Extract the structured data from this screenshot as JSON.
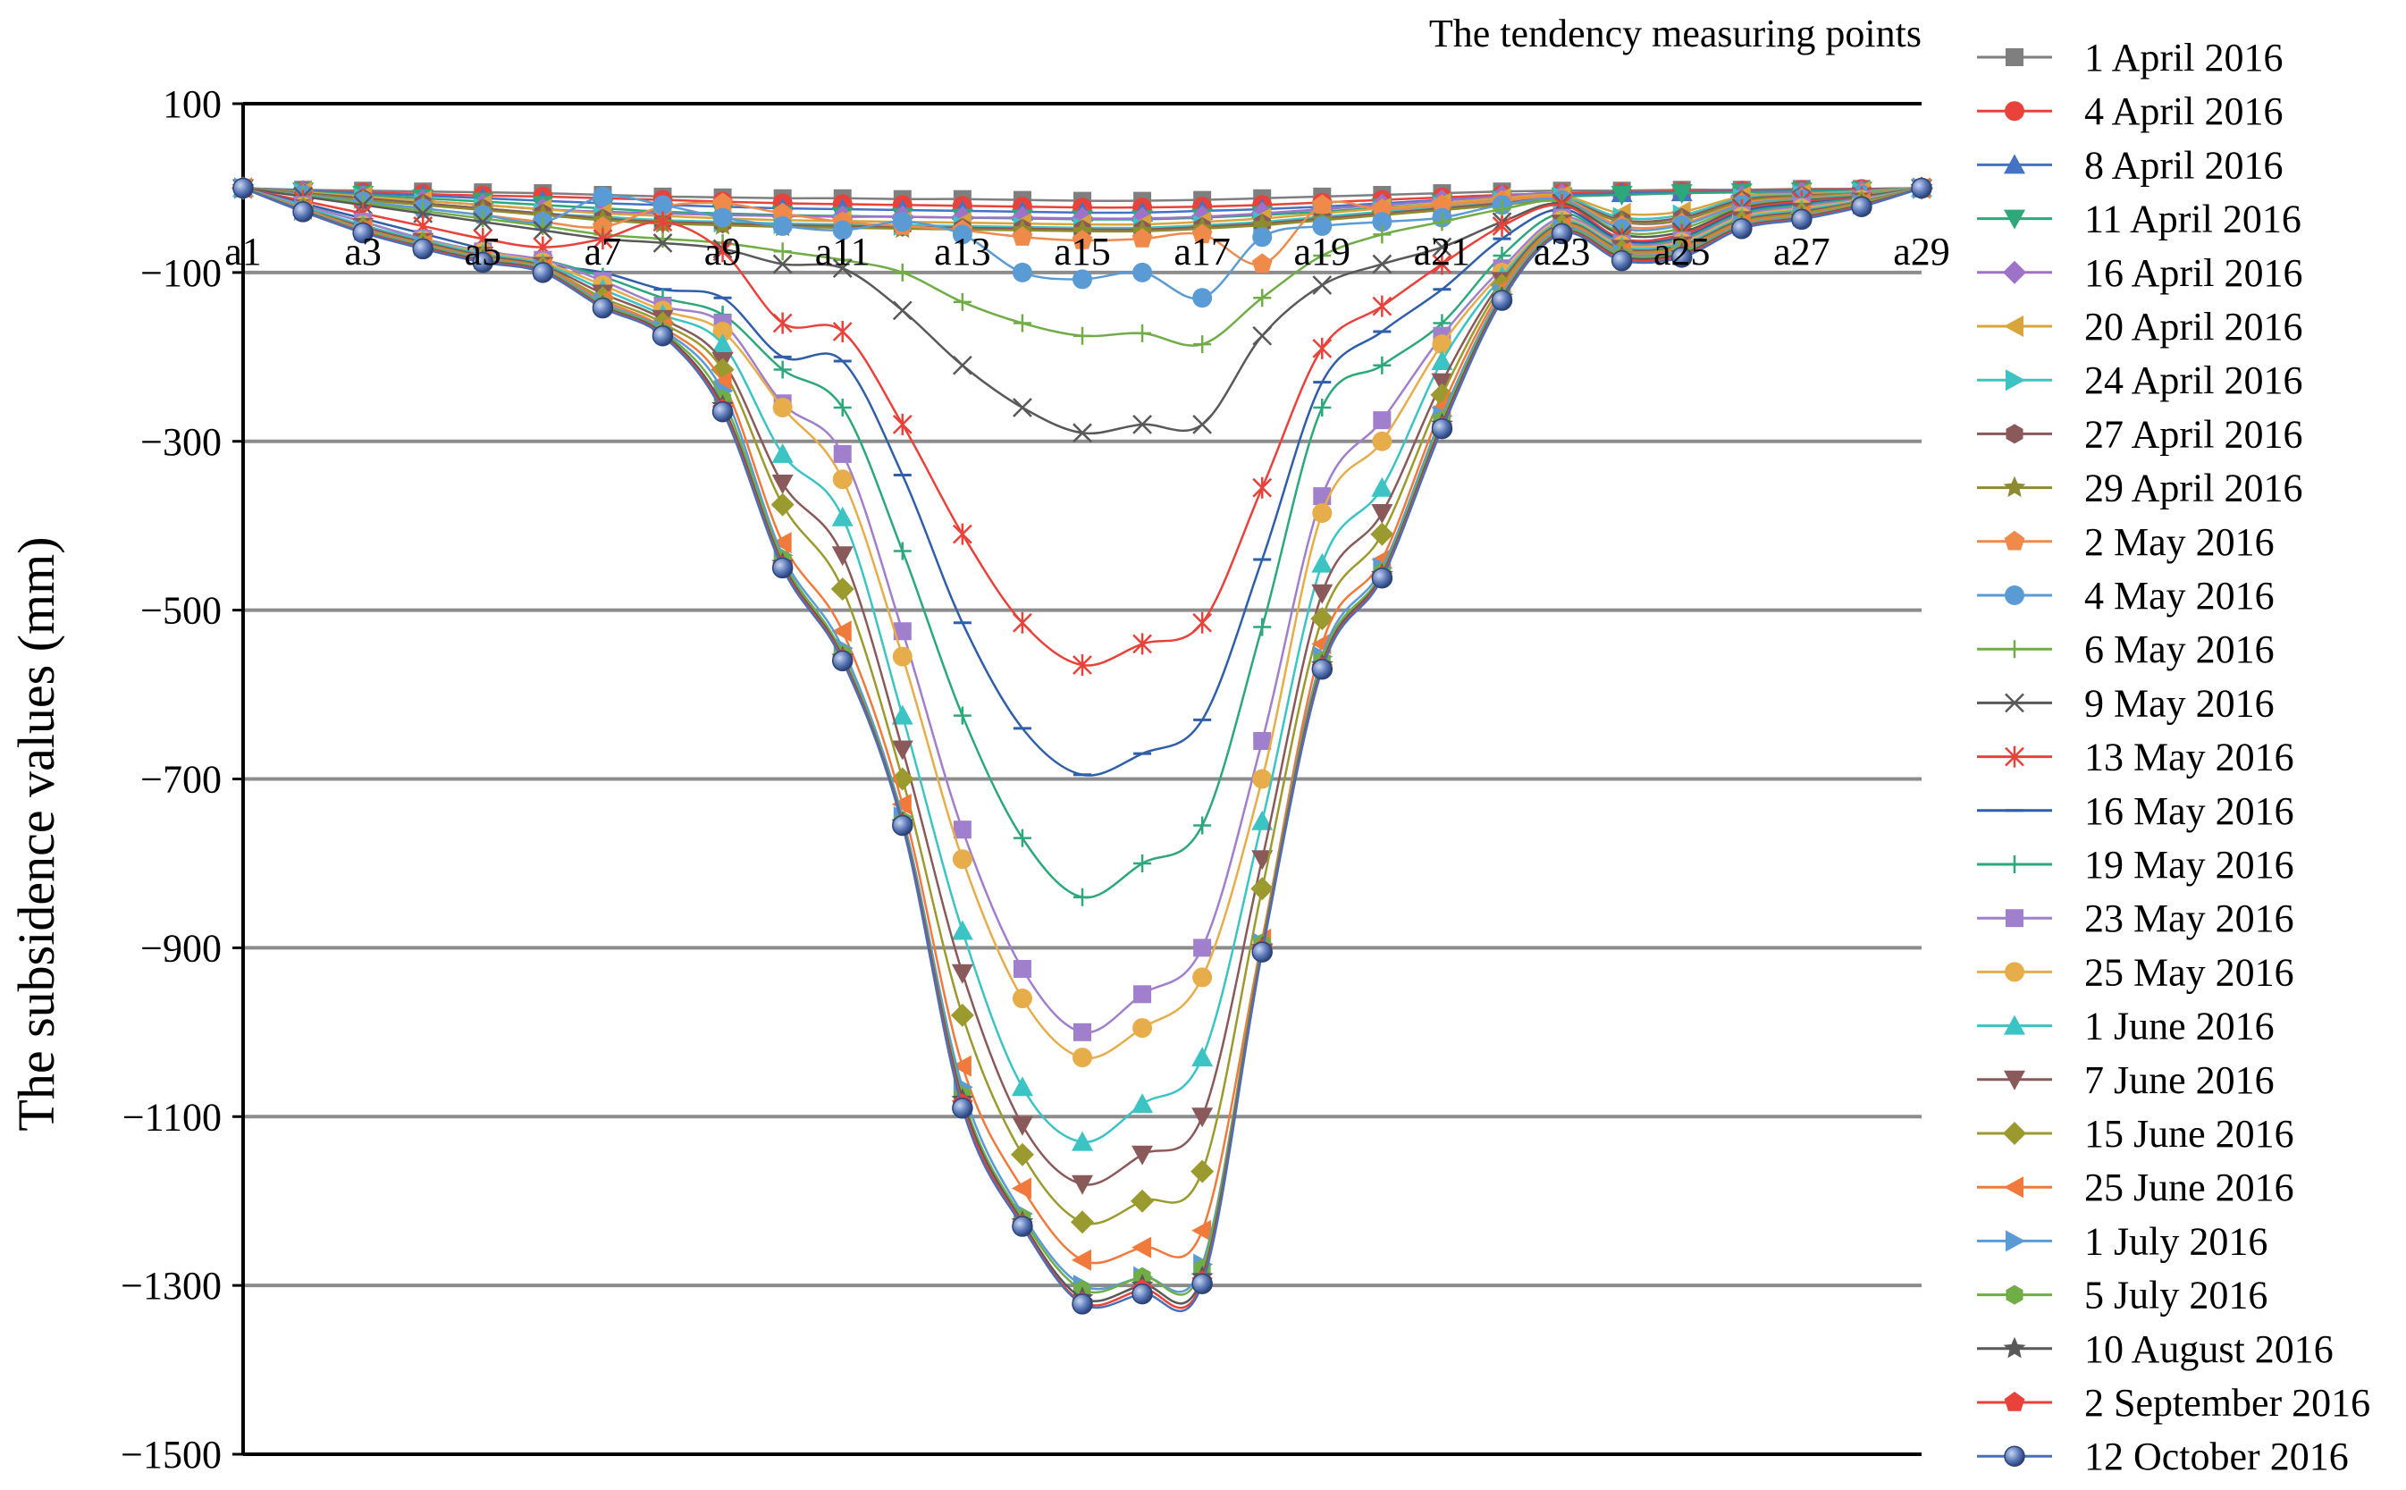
{
  "chart_data": {
    "type": "line",
    "title": "",
    "xlabel": "The tendency measuring points",
    "ylabel": "The subsidence values (mm)",
    "ylim": [
      -1500,
      100
    ],
    "yticks": [
      100,
      -100,
      -300,
      -500,
      -700,
      -900,
      -1100,
      -1300,
      -1500
    ],
    "ytick_labels": [
      "100",
      "−100",
      "−300",
      "−500",
      "−700",
      "−900",
      "−1100",
      "−1300",
      "−1500"
    ],
    "x": [
      "a1",
      "a2",
      "a3",
      "a4",
      "a5",
      "a6",
      "a7",
      "a8",
      "a9",
      "a10",
      "a11",
      "a12",
      "a13",
      "a14",
      "a15",
      "a16",
      "a17",
      "a18",
      "a19",
      "a20",
      "a21",
      "a22",
      "a23",
      "a24",
      "a25",
      "a26",
      "a27",
      "a28",
      "a29"
    ],
    "xtick_labels": [
      "a1",
      "a3",
      "a5",
      "a7",
      "a9",
      "a11",
      "a13",
      "a15",
      "a17",
      "a19",
      "a21",
      "a23",
      "a25",
      "a27",
      "a29"
    ],
    "grid": true,
    "legend_position": "right",
    "series": [
      {
        "name": "1 April 2016",
        "color": "#7f7f7f",
        "marker": "square",
        "values": [
          0,
          -2,
          -3,
          -4,
          -5,
          -6,
          -8,
          -10,
          -11,
          -12,
          -12,
          -13,
          -13,
          -14,
          -15,
          -15,
          -14,
          -12,
          -10,
          -8,
          -6,
          -4,
          -3,
          -3,
          -2,
          -2,
          -1,
          -1,
          0
        ]
      },
      {
        "name": "4 April 2016",
        "color": "#e8423b",
        "marker": "circle",
        "values": [
          0,
          -3,
          -5,
          -7,
          -9,
          -10,
          -12,
          -14,
          -16,
          -18,
          -19,
          -20,
          -21,
          -22,
          -23,
          -23,
          -22,
          -20,
          -17,
          -14,
          -11,
          -8,
          -6,
          -5,
          -4,
          -3,
          -2,
          -1,
          0
        ]
      },
      {
        "name": "8 April 2016",
        "color": "#4472c4",
        "marker": "triangle",
        "values": [
          0,
          -3,
          -6,
          -9,
          -12,
          -15,
          -18,
          -20,
          -22,
          -24,
          -25,
          -26,
          -27,
          -28,
          -29,
          -29,
          -27,
          -25,
          -22,
          -18,
          -14,
          -10,
          -8,
          -6,
          -5,
          -4,
          -3,
          -2,
          0
        ]
      },
      {
        "name": "11 April 2016",
        "color": "#2ca87a",
        "marker": "triangle-down",
        "values": [
          0,
          -4,
          -8,
          -12,
          -16,
          -20,
          -24,
          -28,
          -30,
          -32,
          -33,
          -34,
          -35,
          -36,
          -37,
          -37,
          -35,
          -32,
          -28,
          -23,
          -18,
          -13,
          -10,
          -8,
          -6,
          -5,
          -4,
          -3,
          0
        ]
      },
      {
        "name": "16 April 2016",
        "color": "#9e72c9",
        "marker": "diamond",
        "values": [
          0,
          -5,
          -10,
          -15,
          -20,
          -25,
          -28,
          -30,
          -32,
          -33,
          -34,
          -34,
          -35,
          -35,
          -36,
          -36,
          -34,
          -30,
          -25,
          -20,
          -15,
          -10,
          -8,
          -40,
          -38,
          -10,
          -6,
          -4,
          0
        ]
      },
      {
        "name": "20 April 2016",
        "color": "#d8a43b",
        "marker": "triangle-left",
        "values": [
          0,
          -5,
          -10,
          -15,
          -20,
          -25,
          -30,
          -33,
          -36,
          -38,
          -39,
          -40,
          -41,
          -42,
          -43,
          -43,
          -40,
          -36,
          -30,
          -24,
          -18,
          -12,
          -9,
          -30,
          -28,
          -10,
          -7,
          -4,
          0
        ]
      },
      {
        "name": "24 April 2016",
        "color": "#3cc3c3",
        "marker": "triangle-right",
        "values": [
          0,
          -6,
          -12,
          -18,
          -24,
          -30,
          -34,
          -38,
          -40,
          -42,
          -43,
          -44,
          -45,
          -46,
          -47,
          -47,
          -44,
          -40,
          -34,
          -28,
          -22,
          -16,
          -11,
          -35,
          -32,
          -12,
          -8,
          -5,
          0
        ]
      },
      {
        "name": "27 April 2016",
        "color": "#8a5a5a",
        "marker": "hexagon",
        "values": [
          0,
          -6,
          -12,
          -18,
          -24,
          -30,
          -36,
          -40,
          -42,
          -44,
          -45,
          -46,
          -47,
          -48,
          -49,
          -49,
          -46,
          -42,
          -36,
          -30,
          -24,
          -18,
          -13,
          -38,
          -35,
          -14,
          -9,
          -6,
          0
        ]
      },
      {
        "name": "29 April 2016",
        "color": "#8c8c2e",
        "marker": "star",
        "values": [
          0,
          -7,
          -14,
          -20,
          -26,
          -32,
          -38,
          -42,
          -44,
          -46,
          -47,
          -48,
          -49,
          -50,
          -51,
          -51,
          -48,
          -44,
          -38,
          -32,
          -26,
          -20,
          -15,
          -40,
          -38,
          -16,
          -10,
          -6,
          0
        ]
      },
      {
        "name": "2 May 2016",
        "color": "#f08a4b",
        "marker": "pentagon",
        "values": [
          0,
          -8,
          -16,
          -24,
          -32,
          -40,
          -46,
          -22,
          -18,
          -30,
          -40,
          -45,
          -50,
          -58,
          -62,
          -60,
          -55,
          -90,
          -20,
          -25,
          -20,
          -15,
          -12,
          -45,
          -42,
          -18,
          -12,
          -7,
          0
        ]
      },
      {
        "name": "4 May 2016",
        "color": "#5b9bd5",
        "marker": "circle",
        "values": [
          0,
          -8,
          -16,
          -24,
          -32,
          -40,
          -10,
          -20,
          -35,
          -45,
          -50,
          -40,
          -55,
          -100,
          -108,
          -100,
          -130,
          -58,
          -45,
          -40,
          -35,
          -20,
          -14,
          -48,
          -44,
          -20,
          -13,
          -8,
          0
        ]
      },
      {
        "name": "6 May 2016",
        "color": "#70ad47",
        "marker": "plus",
        "values": [
          0,
          -9,
          -18,
          -27,
          -36,
          -45,
          -55,
          -60,
          -65,
          -75,
          -85,
          -100,
          -135,
          -160,
          -175,
          -172,
          -185,
          -130,
          -80,
          -55,
          -40,
          -25,
          -16,
          -52,
          -48,
          -22,
          -14,
          -9,
          0
        ]
      },
      {
        "name": "9 May 2016",
        "color": "#595959",
        "marker": "x",
        "values": [
          0,
          -10,
          -20,
          -30,
          -40,
          -50,
          -60,
          -65,
          -72,
          -90,
          -95,
          -145,
          -210,
          -260,
          -290,
          -280,
          -280,
          -175,
          -115,
          -90,
          -70,
          -40,
          -18,
          -55,
          -52,
          -24,
          -15,
          -10,
          0
        ]
      },
      {
        "name": "13 May 2016",
        "color": "#e8423b",
        "marker": "asterisk",
        "values": [
          0,
          -15,
          -30,
          -45,
          -60,
          -70,
          -60,
          -40,
          -75,
          -160,
          -170,
          -280,
          -410,
          -515,
          -565,
          -540,
          -515,
          -355,
          -190,
          -140,
          -90,
          -45,
          -20,
          -60,
          -55,
          -26,
          -16,
          -11,
          0
        ]
      },
      {
        "name": "16 May 2016",
        "color": "#2e5fa8",
        "marker": "dash",
        "values": [
          0,
          -18,
          -36,
          -54,
          -72,
          -90,
          -100,
          -120,
          -130,
          -200,
          -205,
          -340,
          -515,
          -640,
          -695,
          -670,
          -630,
          -440,
          -230,
          -170,
          -120,
          -60,
          -25,
          -62,
          -58,
          -28,
          -18,
          -12,
          0
        ]
      },
      {
        "name": "19 May 2016",
        "color": "#2ca87a",
        "marker": "plus",
        "values": [
          0,
          -20,
          -40,
          -60,
          -75,
          -85,
          -105,
          -130,
          -150,
          -215,
          -260,
          -430,
          -625,
          -770,
          -840,
          -800,
          -755,
          -520,
          -260,
          -210,
          -160,
          -80,
          -30,
          -65,
          -60,
          -30,
          -20,
          -12,
          0
        ]
      },
      {
        "name": "23 May 2016",
        "color": "#a07fcc",
        "marker": "square",
        "values": [
          0,
          -20,
          -40,
          -60,
          -75,
          -85,
          -110,
          -140,
          -160,
          -255,
          -315,
          -525,
          -760,
          -925,
          -1000,
          -955,
          -900,
          -655,
          -365,
          -275,
          -175,
          -95,
          -35,
          -66,
          -62,
          -32,
          -22,
          -13,
          0
        ]
      },
      {
        "name": "25 May 2016",
        "color": "#e6ad4a",
        "marker": "circle",
        "values": [
          0,
          -22,
          -44,
          -62,
          -76,
          -88,
          -115,
          -145,
          -170,
          -260,
          -345,
          -555,
          -795,
          -960,
          -1030,
          -995,
          -935,
          -700,
          -385,
          -300,
          -185,
          -100,
          -38,
          -68,
          -64,
          -34,
          -24,
          -14,
          0
        ]
      },
      {
        "name": "1 June 2016",
        "color": "#3cc3c3",
        "marker": "triangle",
        "values": [
          0,
          -22,
          -44,
          -62,
          -78,
          -90,
          -120,
          -150,
          -185,
          -315,
          -390,
          -625,
          -880,
          -1065,
          -1130,
          -1085,
          -1030,
          -750,
          -445,
          -355,
          -205,
          -105,
          -40,
          -70,
          -66,
          -36,
          -26,
          -15,
          0
        ]
      },
      {
        "name": "7 June 2016",
        "color": "#8a5a5a",
        "marker": "triangle-down",
        "values": [
          0,
          -24,
          -46,
          -64,
          -80,
          -92,
          -125,
          -155,
          -205,
          -350,
          -435,
          -665,
          -930,
          -1110,
          -1180,
          -1145,
          -1100,
          -795,
          -480,
          -385,
          -230,
          -110,
          -42,
          -72,
          -68,
          -38,
          -28,
          -16,
          0
        ]
      },
      {
        "name": "15 June 2016",
        "color": "#9a9a2e",
        "marker": "diamond",
        "values": [
          0,
          -24,
          -48,
          -66,
          -82,
          -94,
          -130,
          -160,
          -215,
          -375,
          -475,
          -700,
          -980,
          -1145,
          -1225,
          -1200,
          -1165,
          -830,
          -510,
          -410,
          -245,
          -115,
          -44,
          -74,
          -70,
          -40,
          -30,
          -17,
          0
        ]
      },
      {
        "name": "25 June 2016",
        "color": "#f07a3b",
        "marker": "triangle-left",
        "values": [
          0,
          -25,
          -49,
          -67,
          -83,
          -95,
          -133,
          -165,
          -230,
          -420,
          -525,
          -730,
          -1040,
          -1185,
          -1270,
          -1255,
          -1235,
          -890,
          -540,
          -440,
          -260,
          -120,
          -46,
          -76,
          -72,
          -42,
          -32,
          -18,
          0
        ]
      },
      {
        "name": "1 July 2016",
        "color": "#5b9bd5",
        "marker": "triangle-right",
        "values": [
          0,
          -26,
          -50,
          -68,
          -84,
          -96,
          -136,
          -168,
          -240,
          -435,
          -545,
          -745,
          -1065,
          -1215,
          -1300,
          -1290,
          -1275,
          -895,
          -555,
          -450,
          -270,
          -125,
          -48,
          -78,
          -74,
          -44,
          -33,
          -19,
          0
        ]
      },
      {
        "name": "5 July 2016",
        "color": "#70ad47",
        "marker": "hexagon",
        "values": [
          0,
          -27,
          -51,
          -69,
          -85,
          -97,
          -138,
          -170,
          -250,
          -440,
          -552,
          -750,
          -1075,
          -1220,
          -1305,
          -1290,
          -1280,
          -895,
          -560,
          -455,
          -275,
          -128,
          -50,
          -80,
          -76,
          -45,
          -34,
          -19,
          0
        ]
      },
      {
        "name": "10 August 2016",
        "color": "#595959",
        "marker": "star",
        "values": [
          0,
          -27,
          -52,
          -70,
          -86,
          -98,
          -140,
          -172,
          -258,
          -445,
          -556,
          -752,
          -1080,
          -1225,
          -1315,
          -1300,
          -1290,
          -900,
          -565,
          -458,
          -280,
          -130,
          -52,
          -82,
          -78,
          -46,
          -35,
          -20,
          0
        ]
      },
      {
        "name": "2 September 2016",
        "color": "#e8423b",
        "marker": "pentagon",
        "values": [
          0,
          -28,
          -52,
          -71,
          -87,
          -99,
          -141,
          -174,
          -262,
          -448,
          -558,
          -754,
          -1085,
          -1228,
          -1320,
          -1305,
          -1295,
          -902,
          -568,
          -460,
          -283,
          -132,
          -53,
          -84,
          -80,
          -47,
          -36,
          -21,
          0
        ]
      },
      {
        "name": "12 October 2016",
        "color": "#4a6fb5",
        "marker": "sphere",
        "values": [
          0,
          -28,
          -53,
          -72,
          -88,
          -100,
          -142,
          -175,
          -265,
          -450,
          -560,
          -755,
          -1090,
          -1230,
          -1322,
          -1310,
          -1298,
          -905,
          -570,
          -462,
          -285,
          -133,
          -54,
          -86,
          -82,
          -48,
          -37,
          -22,
          0
        ]
      }
    ]
  }
}
